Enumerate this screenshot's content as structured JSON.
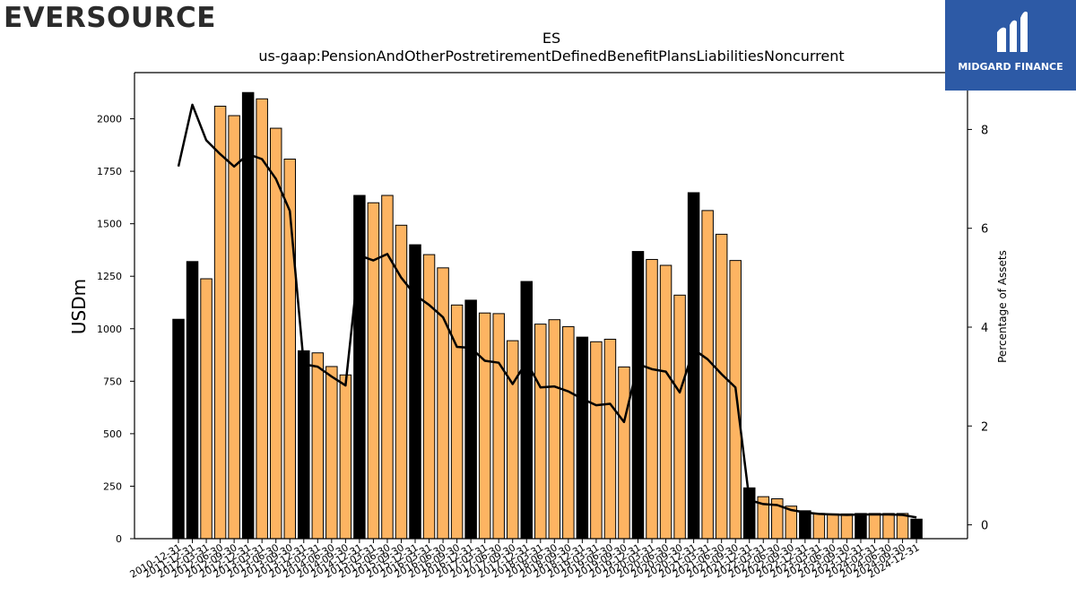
{
  "header": {
    "company_logo_text": "EVERSOURCE",
    "partner_logo_text": "MIDGARD FINANCE"
  },
  "chart_data": {
    "type": "bar",
    "title": "ES",
    "subtitle": "us-gaap:PensionAndOtherPostretirementDefinedBenefitPlansLiabilitiesNoncurrent",
    "ylabel": "USDm",
    "y2label": "Percentage of Assets",
    "ylim": [
      0,
      2220
    ],
    "y2lim": [
      -0.28,
      9.15
    ],
    "yticks": [
      0,
      250,
      500,
      750,
      1000,
      1250,
      1500,
      1750,
      2000
    ],
    "y2ticks": [
      0,
      2,
      4,
      6,
      8
    ],
    "colors": {
      "annual": "#000000",
      "quarterly": "#fdb462",
      "line": "#000000"
    },
    "categories": [
      "2010-12-31",
      "2011-12-31",
      "2012-03-31",
      "2012-06-30",
      "2012-09-30",
      "2012-12-31",
      "2013-03-31",
      "2013-06-30",
      "2013-09-30",
      "2013-12-31",
      "2014-03-31",
      "2014-06-30",
      "2014-09-30",
      "2014-12-31",
      "2015-03-31",
      "2015-06-30",
      "2015-09-30",
      "2015-12-31",
      "2016-03-31",
      "2016-06-30",
      "2016-09-30",
      "2016-12-31",
      "2017-03-31",
      "2017-06-30",
      "2017-09-30",
      "2017-12-31",
      "2018-03-31",
      "2018-06-30",
      "2018-09-30",
      "2018-12-31",
      "2019-03-31",
      "2019-06-30",
      "2019-09-30",
      "2019-12-31",
      "2020-03-31",
      "2020-06-30",
      "2020-09-30",
      "2020-12-31",
      "2021-03-31",
      "2021-06-30",
      "2021-09-30",
      "2021-12-31",
      "2022-03-31",
      "2022-06-30",
      "2022-09-30",
      "2022-12-31",
      "2023-03-31",
      "2023-06-30",
      "2023-09-30",
      "2023-12-31",
      "2024-03-31",
      "2024-06-30",
      "2024-09-30",
      "2024-12-31"
    ],
    "annual": [
      true,
      true,
      false,
      false,
      false,
      true,
      false,
      false,
      false,
      true,
      false,
      false,
      false,
      true,
      false,
      false,
      false,
      true,
      false,
      false,
      false,
      true,
      false,
      false,
      false,
      true,
      false,
      false,
      false,
      true,
      false,
      false,
      false,
      true,
      false,
      false,
      false,
      true,
      false,
      false,
      false,
      true,
      false,
      false,
      false,
      true,
      false,
      false,
      false,
      true,
      false,
      false,
      false,
      true
    ],
    "values": [
      1045,
      1320,
      1238,
      2060,
      2015,
      2125,
      2095,
      1955,
      1808,
      895,
      885,
      820,
      780,
      1635,
      1600,
      1635,
      1493,
      1400,
      1353,
      1290,
      1113,
      1136,
      1075,
      1072,
      943,
      1225,
      1022,
      1043,
      1010,
      960,
      938,
      950,
      818,
      1368,
      1330,
      1302,
      1160,
      1648,
      1563,
      1450,
      1325,
      242,
      200,
      190,
      155,
      133,
      120,
      118,
      118,
      120,
      120,
      120,
      120,
      93
    ],
    "pct_of_assets": [
      7.25,
      8.5,
      7.78,
      7.5,
      7.25,
      7.5,
      7.4,
      7.0,
      6.35,
      3.25,
      3.2,
      3.0,
      2.82,
      5.45,
      5.35,
      5.48,
      5.0,
      4.65,
      4.45,
      4.2,
      3.6,
      3.58,
      3.32,
      3.28,
      2.85,
      3.3,
      2.78,
      2.8,
      2.7,
      2.55,
      2.42,
      2.45,
      2.08,
      3.25,
      3.15,
      3.1,
      2.68,
      3.55,
      3.35,
      3.05,
      2.78,
      0.5,
      0.42,
      0.4,
      0.3,
      0.25,
      0.22,
      0.21,
      0.2,
      0.21,
      0.21,
      0.21,
      0.2,
      0.15
    ]
  }
}
